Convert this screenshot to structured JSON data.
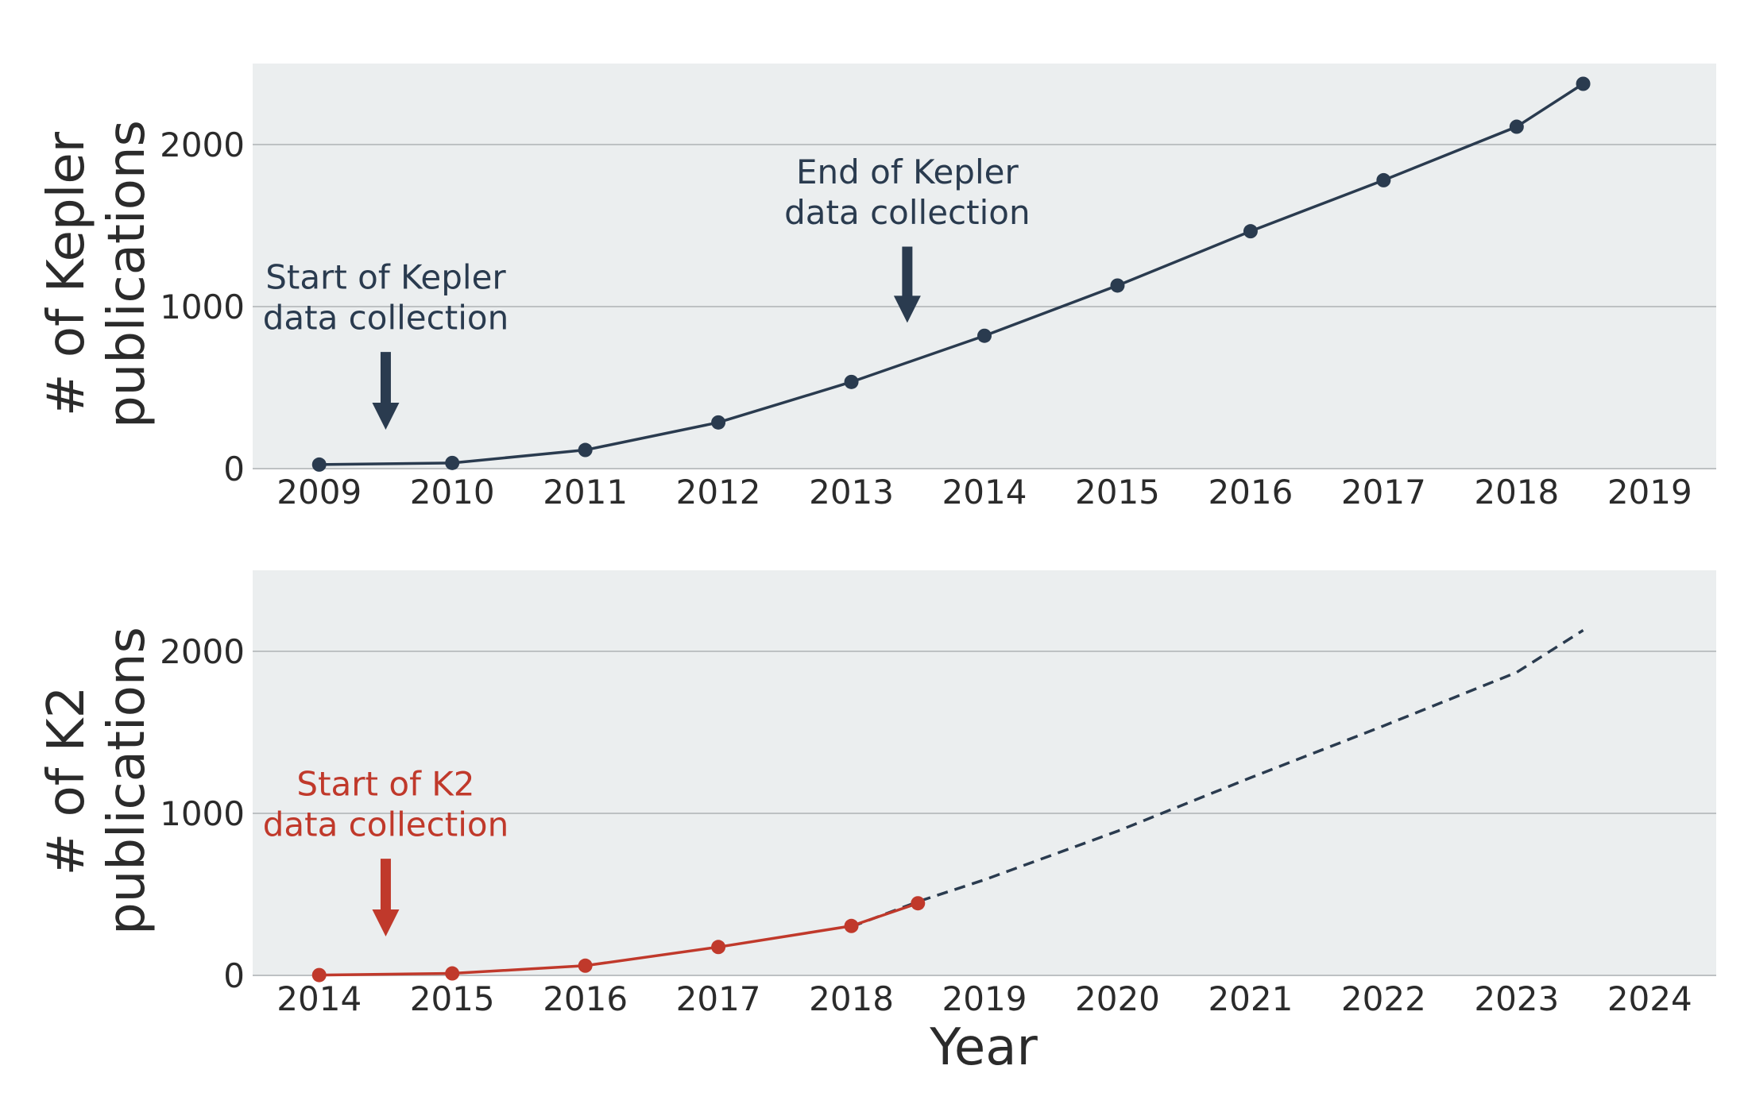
{
  "colors": {
    "background": "#ffffff",
    "panel": "#ebeeef",
    "grid": "#bdc1c3",
    "kepler": "#2a3b4f",
    "k2": "#c0392b",
    "text": "#2b2b2b"
  },
  "chart_data": [
    {
      "type": "line",
      "ylabel_lines": [
        "# of Kepler",
        "publications"
      ],
      "xlabel": "",
      "xlim": [
        2008.5,
        2019.5
      ],
      "ylim": [
        0,
        2500
      ],
      "yticks": [
        0,
        1000,
        2000
      ],
      "xticks": [
        2009,
        2010,
        2011,
        2012,
        2013,
        2014,
        2015,
        2016,
        2017,
        2018,
        2019
      ],
      "grid": "horizontal",
      "series": [
        {
          "color": "#2a3b4f",
          "style": "solid",
          "markers": true,
          "x": [
            2009,
            2010,
            2011,
            2012,
            2013,
            2014,
            2015,
            2016,
            2017,
            2018,
            2018.5
          ],
          "y": [
            25,
            35,
            115,
            285,
            535,
            820,
            1130,
            1465,
            1780,
            2110,
            2375
          ]
        }
      ],
      "annotations": [
        {
          "lines": [
            "Start of Kepler",
            "data collection"
          ],
          "arrow_x": 2009.5,
          "color": "#2a3b4f",
          "arrow_from_y": 720,
          "arrow_to_y": 240,
          "text_y": [
            1110,
            860
          ]
        },
        {
          "lines": [
            "End of Kepler",
            "data collection"
          ],
          "arrow_x": 2013.42,
          "color": "#2a3b4f",
          "arrow_from_y": 1370,
          "arrow_to_y": 900,
          "text_y": [
            1760,
            1510
          ]
        }
      ]
    },
    {
      "type": "line",
      "ylabel_lines": [
        "# of K2",
        "publications"
      ],
      "xlabel": "Year",
      "xlim": [
        2013.5,
        2024.5
      ],
      "ylim": [
        0,
        2500
      ],
      "yticks": [
        0,
        1000,
        2000
      ],
      "xticks": [
        2014,
        2015,
        2016,
        2017,
        2018,
        2019,
        2020,
        2021,
        2022,
        2023,
        2024
      ],
      "grid": "horizontal",
      "series": [
        {
          "color": "#2a3b4f",
          "style": "dashed",
          "markers": false,
          "x": [
            2018,
            2018.5,
            2019,
            2020,
            2021,
            2022,
            2023,
            2023.5
          ],
          "y": [
            300,
            455,
            590,
            890,
            1220,
            1540,
            1870,
            2130
          ]
        },
        {
          "color": "#c0392b",
          "style": "solid",
          "markers": true,
          "x": [
            2014,
            2015,
            2016,
            2017,
            2018,
            2018.5
          ],
          "y": [
            2,
            12,
            60,
            175,
            305,
            445
          ]
        }
      ],
      "annotations": [
        {
          "lines": [
            "Start of K2",
            "data collection"
          ],
          "arrow_x": 2014.5,
          "color": "#c0392b",
          "arrow_from_y": 720,
          "arrow_to_y": 240,
          "text_y": [
            1110,
            860
          ]
        }
      ]
    }
  ]
}
